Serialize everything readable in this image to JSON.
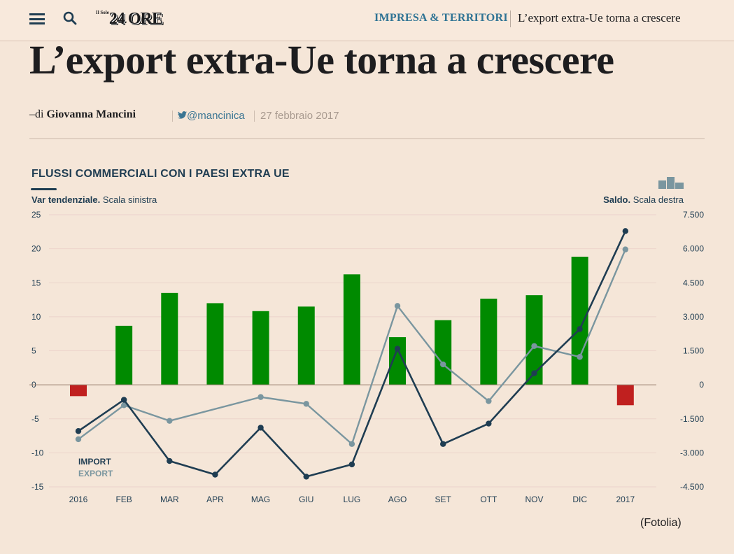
{
  "header": {
    "logo_small": "Il Sole",
    "logo_big": "24 ORE",
    "section": "IMPRESA & TERRITORI",
    "breadcrumb_title": "L’export extra-Ue torna a crescere"
  },
  "article": {
    "title": "L’export extra-Ue torna a crescere",
    "byline_prefix": "–di",
    "author": "Giovanna Mancini",
    "twitter": "@mancinica",
    "date": "27 febbraio 2017",
    "credit": "(Fotolia)"
  },
  "colors": {
    "import": "#1f3d52",
    "export": "#7a969f",
    "positive": "#008a00",
    "negative": "#c0201f"
  },
  "chart_data": {
    "type": "bar+line",
    "title": "FLUSSI COMMERCIALI CON I PAESI EXTRA UE",
    "left_label_bold": "Var tendenziale.",
    "left_label": "Scala sinistra",
    "right_label_bold": "Saldo.",
    "right_label": "Scala destra",
    "categories": [
      "2016",
      "FEB",
      "MAR",
      "APR",
      "MAG",
      "GIU",
      "LUG",
      "AGO",
      "SET",
      "OTT",
      "NOV",
      "DIC",
      "2017"
    ],
    "left_ylim": [
      -15,
      25
    ],
    "left_ticks": [
      {
        "v": 25,
        "label": "25"
      },
      {
        "v": 20,
        "label": "20"
      },
      {
        "v": 15,
        "label": "15"
      },
      {
        "v": 10,
        "label": "10"
      },
      {
        "v": 5,
        "label": "5"
      },
      {
        "v": 0,
        "label": "0"
      },
      {
        "v": -5,
        "label": "-5"
      },
      {
        "v": -10,
        "label": "-10"
      },
      {
        "v": -15,
        "label": "-15"
      }
    ],
    "right_ylim": [
      -4500,
      7500
    ],
    "right_ticks": [
      {
        "v": 7500,
        "label": "7.500"
      },
      {
        "v": 6000,
        "label": "6.000"
      },
      {
        "v": 4500,
        "label": "4.500"
      },
      {
        "v": 3000,
        "label": "3.000"
      },
      {
        "v": 1500,
        "label": "1.500"
      },
      {
        "v": 0,
        "label": "0"
      },
      {
        "v": -1500,
        "label": "-1.500"
      },
      {
        "v": -3000,
        "label": "-3.000"
      },
      {
        "v": -4500,
        "label": "-4.500"
      }
    ],
    "saldo": [
      -500,
      2600,
      4050,
      3600,
      3250,
      3450,
      4870,
      2100,
      2850,
      3800,
      3950,
      5650,
      -900
    ],
    "series": [
      {
        "name": "IMPORT",
        "values": [
          -6.8,
          -2.2,
          -11.2,
          -13.2,
          -6.3,
          -13.5,
          -11.7,
          5.3,
          -8.7,
          -5.7,
          1.7,
          8.2,
          22.6
        ]
      },
      {
        "name": "EXPORT",
        "values": [
          -8.0,
          -3.0,
          -5.3,
          null,
          -1.8,
          -2.8,
          -8.7,
          11.6,
          3.0,
          -2.4,
          5.7,
          4.1,
          19.9
        ]
      }
    ]
  }
}
